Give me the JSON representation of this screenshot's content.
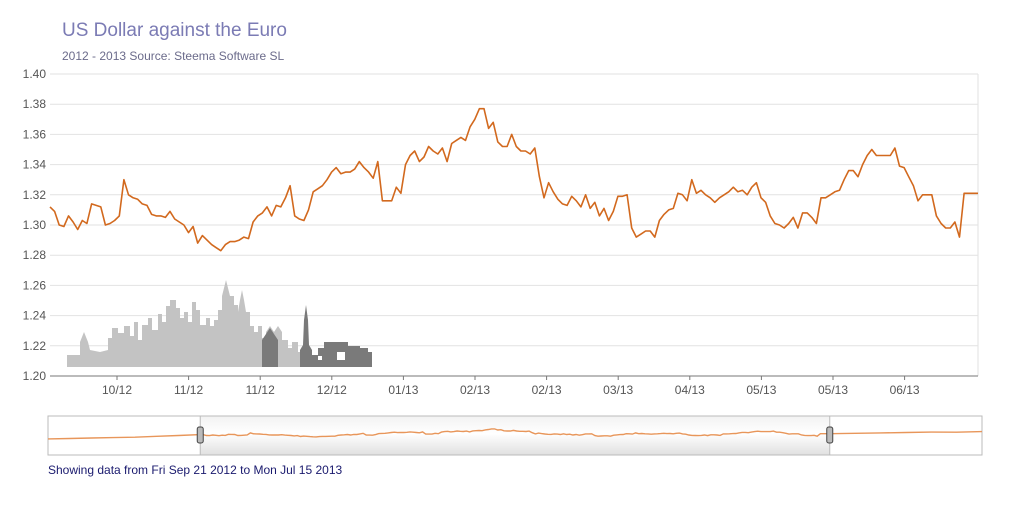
{
  "chart_data": {
    "type": "line",
    "title": "US Dollar against the Euro",
    "subtitle": "2012 - 2013 Source: Steema Software SL",
    "xlabel": "",
    "ylabel": "",
    "ylim": [
      1.2,
      1.4
    ],
    "y_ticks": [
      "1.20",
      "1.22",
      "1.24",
      "1.26",
      "1.28",
      "1.30",
      "1.32",
      "1.34",
      "1.36",
      "1.38",
      "1.40"
    ],
    "x_ticks": [
      "10/12",
      "11/12",
      "11/12",
      "12/12",
      "01/13",
      "02/13",
      "02/13",
      "03/13",
      "04/13",
      "05/13",
      "05/13",
      "06/13"
    ],
    "grid": true,
    "series": [
      {
        "color": "#d2691e",
        "y": [
          1.312,
          1.309,
          1.3,
          1.299,
          1.306,
          1.302,
          1.297,
          1.303,
          1.301,
          1.314,
          1.313,
          1.312,
          1.3,
          1.301,
          1.303,
          1.306,
          1.33,
          1.32,
          1.318,
          1.317,
          1.314,
          1.313,
          1.307,
          1.306,
          1.306,
          1.305,
          1.309,
          1.304,
          1.302,
          1.3,
          1.295,
          1.299,
          1.288,
          1.293,
          1.29,
          1.287,
          1.285,
          1.283,
          1.287,
          1.289,
          1.289,
          1.29,
          1.292,
          1.291,
          1.302,
          1.306,
          1.308,
          1.312,
          1.306,
          1.313,
          1.312,
          1.318,
          1.326,
          1.306,
          1.304,
          1.303,
          1.31,
          1.322,
          1.324,
          1.326,
          1.33,
          1.335,
          1.338,
          1.334,
          1.335,
          1.335,
          1.337,
          1.342,
          1.338,
          1.335,
          1.331,
          1.342,
          1.316,
          1.316,
          1.316,
          1.325,
          1.321,
          1.34,
          1.346,
          1.349,
          1.342,
          1.345,
          1.352,
          1.349,
          1.347,
          1.351,
          1.342,
          1.354,
          1.356,
          1.358,
          1.356,
          1.365,
          1.37,
          1.377,
          1.377,
          1.364,
          1.368,
          1.355,
          1.352,
          1.352,
          1.36,
          1.352,
          1.349,
          1.349,
          1.347,
          1.351,
          1.332,
          1.318,
          1.328,
          1.322,
          1.317,
          1.314,
          1.313,
          1.319,
          1.316,
          1.312,
          1.32,
          1.311,
          1.315,
          1.306,
          1.311,
          1.303,
          1.309,
          1.319,
          1.319,
          1.32,
          1.298,
          1.292,
          1.294,
          1.296,
          1.296,
          1.292,
          1.303,
          1.307,
          1.31,
          1.311,
          1.321,
          1.32,
          1.316,
          1.33,
          1.321,
          1.323,
          1.32,
          1.318,
          1.315,
          1.318,
          1.32,
          1.322,
          1.325,
          1.322,
          1.323,
          1.32,
          1.325,
          1.328,
          1.318,
          1.315,
          1.306,
          1.301,
          1.3,
          1.298,
          1.301,
          1.305,
          1.298,
          1.308,
          1.308,
          1.305,
          1.301,
          1.318,
          1.318,
          1.32,
          1.322,
          1.323,
          1.33,
          1.336,
          1.336,
          1.332,
          1.34,
          1.346,
          1.35,
          1.346,
          1.346,
          1.346,
          1.346,
          1.351,
          1.339,
          1.338,
          1.332,
          1.326,
          1.316,
          1.32,
          1.32,
          1.32,
          1.306,
          1.301,
          1.298,
          1.298,
          1.302,
          1.292,
          1.321,
          1.321,
          1.321,
          1.321
        ]
      }
    ],
    "navigator": {
      "range_start_fraction": 0.163,
      "range_end_fraction": 0.837
    }
  },
  "footer": {
    "range_text": "Showing data from Fri Sep 21 2012 to Mon Jul 15 2013"
  },
  "colors": {
    "line": "#d2691e",
    "navigator_line": "#e8965a",
    "grid": "#e2e2e2",
    "axis": "#777777",
    "skyline_light": "#c3c3c3",
    "skyline_dark": "#7a7a7a",
    "title": "#7b7bb4"
  }
}
